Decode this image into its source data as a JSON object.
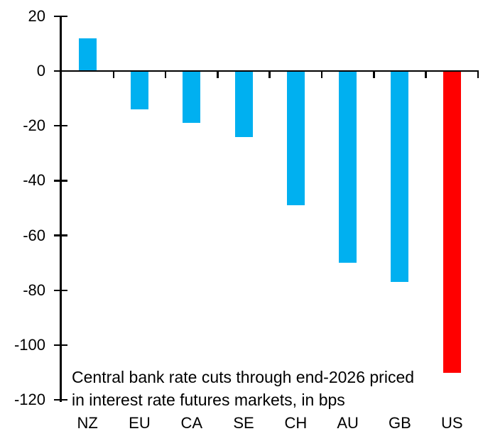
{
  "chart_data": {
    "type": "bar",
    "title": "",
    "categories": [
      "NZ",
      "EU",
      "CA",
      "SE",
      "CH",
      "AU",
      "GB",
      "US"
    ],
    "values": [
      12,
      -14,
      -19,
      -24,
      -49,
      -70,
      -77,
      -110
    ],
    "bar_colors": [
      "#00B0F0",
      "#00B0F0",
      "#00B0F0",
      "#00B0F0",
      "#00B0F0",
      "#00B0F0",
      "#00B0F0",
      "#FF0000"
    ],
    "yticks": [
      20,
      0,
      -20,
      -40,
      -60,
      -80,
      -100,
      -120
    ],
    "ylim": [
      -120,
      20
    ],
    "grid": false,
    "legend": "none",
    "xlabel": "",
    "ylabel": "",
    "axis_color": "#000000",
    "background_color": "#FFFFFF",
    "annotation": {
      "line1": "Central bank rate cuts through end-2026 priced",
      "line2": "in interest rate futures markets, in bps"
    }
  }
}
